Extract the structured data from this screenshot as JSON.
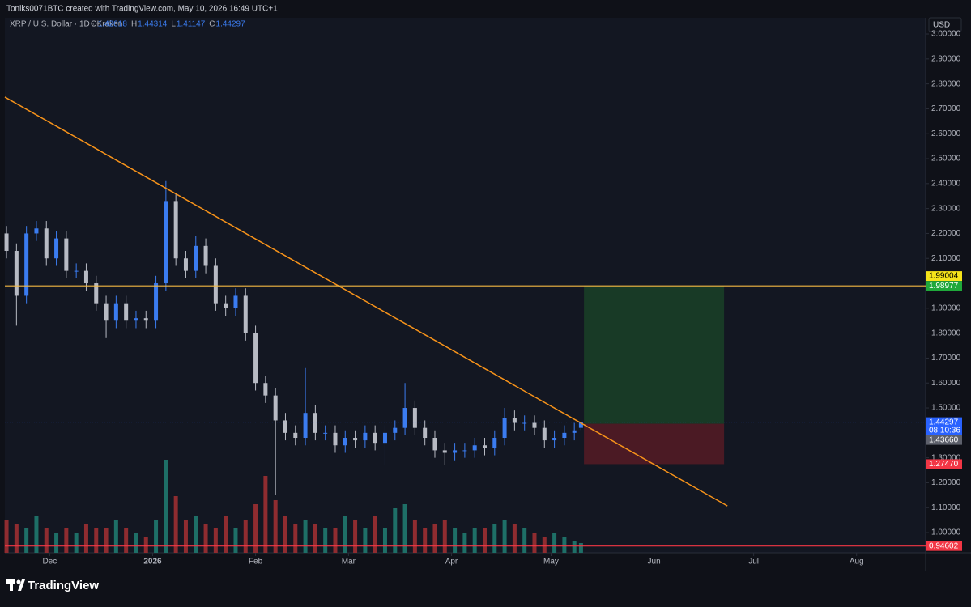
{
  "header": "Toniks0071BTC created with TradingView.com, May 10, 2026 16:49 UTC+1",
  "brand": "TradingView",
  "chart_data": {
    "type": "candlestick",
    "symbol": "XRP / U.S. Dollar · 1D · Kraken",
    "ohlc_keys": [
      "O",
      "H",
      "L",
      "C"
    ],
    "currency": "USD",
    "countdown": "08:10:36",
    "up_color": "#3b7cf0",
    "down_color": "#b7bac3",
    "volume_up_color": "#1e6f67",
    "volume_down_color": "#8f2c30",
    "candles": {
      "x": [
        0,
        3,
        6,
        9,
        12,
        15,
        18,
        21,
        24,
        27,
        30,
        33,
        36,
        39,
        42,
        45,
        48,
        51,
        54,
        57,
        60,
        63,
        66,
        69,
        72,
        75,
        78,
        81,
        84,
        87,
        90,
        93,
        96,
        99,
        102,
        105,
        108,
        111,
        114,
        117,
        120,
        123,
        126,
        129,
        132,
        135,
        138,
        141,
        144,
        147,
        150,
        153,
        156,
        159,
        162,
        165,
        168,
        171,
        173
      ],
      "open": [
        2.2,
        2.13,
        1.95,
        2.2,
        2.22,
        2.1,
        2.18,
        2.05,
        2.05,
        2.0,
        1.92,
        1.85,
        1.92,
        1.85,
        1.86,
        1.85,
        2.0,
        2.33,
        2.1,
        2.05,
        2.15,
        2.07,
        1.92,
        1.9,
        1.95,
        1.8,
        1.6,
        1.55,
        1.45,
        1.4,
        1.38,
        1.48,
        1.4,
        1.4,
        1.35,
        1.38,
        1.37,
        1.4,
        1.36,
        1.4,
        1.42,
        1.5,
        1.42,
        1.38,
        1.33,
        1.32,
        1.33,
        1.33,
        1.35,
        1.34,
        1.38,
        1.46,
        1.44,
        1.44,
        1.42,
        1.37,
        1.38,
        1.4,
        1.42018
      ],
      "high": [
        2.23,
        2.16,
        2.23,
        2.25,
        2.25,
        2.21,
        2.21,
        2.08,
        2.08,
        2.03,
        1.95,
        1.95,
        1.95,
        1.89,
        1.89,
        2.03,
        2.41,
        2.36,
        2.13,
        2.19,
        2.18,
        2.1,
        1.95,
        1.98,
        1.98,
        1.83,
        1.63,
        1.58,
        1.48,
        1.43,
        1.66,
        1.51,
        1.43,
        1.43,
        1.41,
        1.41,
        1.43,
        1.43,
        1.43,
        1.45,
        1.6,
        1.53,
        1.45,
        1.41,
        1.36,
        1.36,
        1.36,
        1.38,
        1.38,
        1.41,
        1.5,
        1.49,
        1.47,
        1.47,
        1.45,
        1.41,
        1.43,
        1.44,
        1.44314
      ],
      "low": [
        2.1,
        1.83,
        1.92,
        2.17,
        2.07,
        2.07,
        2.02,
        2.02,
        1.97,
        1.89,
        1.78,
        1.82,
        1.82,
        1.82,
        1.82,
        1.82,
        1.97,
        2.07,
        2.02,
        2.02,
        2.04,
        1.89,
        1.87,
        1.87,
        1.77,
        1.57,
        1.52,
        1.15,
        1.37,
        1.35,
        1.35,
        1.37,
        1.37,
        1.32,
        1.32,
        1.34,
        1.34,
        1.33,
        1.27,
        1.37,
        1.39,
        1.39,
        1.35,
        1.3,
        1.27,
        1.29,
        1.3,
        1.3,
        1.31,
        1.31,
        1.35,
        1.41,
        1.41,
        1.39,
        1.34,
        1.34,
        1.35,
        1.37,
        1.41147
      ],
      "close": [
        2.13,
        1.95,
        2.2,
        2.22,
        2.1,
        2.18,
        2.05,
        2.05,
        2.0,
        1.92,
        1.85,
        1.92,
        1.85,
        1.86,
        1.85,
        2.0,
        2.33,
        2.1,
        2.05,
        2.15,
        2.07,
        1.92,
        1.9,
        1.95,
        1.8,
        1.6,
        1.55,
        1.45,
        1.4,
        1.38,
        1.48,
        1.4,
        1.4,
        1.35,
        1.38,
        1.37,
        1.4,
        1.36,
        1.4,
        1.42,
        1.5,
        1.42,
        1.38,
        1.33,
        1.32,
        1.33,
        1.33,
        1.35,
        1.34,
        1.38,
        1.46,
        1.44,
        1.44,
        1.42,
        1.37,
        1.38,
        1.4,
        1.41,
        1.44297
      ],
      "volume": [
        40,
        35,
        30,
        45,
        30,
        25,
        30,
        25,
        35,
        30,
        30,
        40,
        30,
        25,
        20,
        40,
        115,
        70,
        40,
        45,
        35,
        30,
        45,
        30,
        40,
        60,
        95,
        65,
        45,
        35,
        40,
        35,
        30,
        30,
        45,
        40,
        30,
        45,
        30,
        55,
        60,
        40,
        30,
        35,
        40,
        30,
        25,
        30,
        30,
        35,
        40,
        35,
        30,
        25,
        20,
        25,
        20,
        15,
        12
      ]
    },
    "xlim": [
      -0.5,
      276.8
    ],
    "xticks": [
      {
        "value": 13,
        "label": "Dec"
      },
      {
        "value": 44,
        "label": "2026"
      },
      {
        "value": 75,
        "label": "Feb"
      },
      {
        "value": 103,
        "label": "Mar"
      },
      {
        "value": 134,
        "label": "Apr"
      },
      {
        "value": 164,
        "label": "May"
      },
      {
        "value": 195,
        "label": "Jun"
      },
      {
        "value": 225,
        "label": "Jul"
      },
      {
        "value": 256,
        "label": "Aug"
      }
    ],
    "ylim": [
      0.919,
      3.065
    ],
    "yticks": [
      {
        "value": 1.0,
        "label": "1.00000"
      },
      {
        "value": 1.1,
        "label": "1.10000"
      },
      {
        "value": 1.2,
        "label": "1.20000"
      },
      {
        "value": 1.3,
        "label": "1.30000"
      },
      {
        "value": 1.5,
        "label": "1.50000"
      },
      {
        "value": 1.6,
        "label": "1.60000"
      },
      {
        "value": 1.7,
        "label": "1.70000"
      },
      {
        "value": 1.8,
        "label": "1.80000"
      },
      {
        "value": 1.9,
        "label": "1.90000"
      },
      {
        "value": 2.1,
        "label": "2.10000"
      },
      {
        "value": 2.2,
        "label": "2.20000"
      },
      {
        "value": 2.3,
        "label": "2.30000"
      },
      {
        "value": 2.4,
        "label": "2.40000"
      },
      {
        "value": 2.5,
        "label": "2.50000"
      },
      {
        "value": 2.6,
        "label": "2.60000"
      },
      {
        "value": 2.7,
        "label": "2.70000"
      },
      {
        "value": 2.8,
        "label": "2.80000"
      },
      {
        "value": 2.9,
        "label": "2.90000"
      },
      {
        "value": 3.0,
        "label": "3.00000"
      }
    ],
    "trendline": {
      "x": [
        -0.5,
        217.1
      ],
      "y": [
        2.747,
        1.107
      ],
      "color": "#f7931a"
    },
    "hlines": [
      {
        "value": 1.98977,
        "color": "#f5b942",
        "label_color": "#1fa83a"
      },
      {
        "value": 0.94602,
        "color": "#f23645",
        "label_color": "#f23645"
      }
    ],
    "position": {
      "start": 173.9,
      "end": 216.1,
      "entry": {
        "value": 1.4366,
        "label": "1.43660"
      },
      "target": 1.99004,
      "stop": {
        "value": 1.2747,
        "label": "1.27470"
      },
      "profit_color": "#183a26",
      "loss_color": "#4b1a24",
      "target_label_color": "#f5e31a",
      "entry_label_color": "#5d606b",
      "stop_label_color": "#f23645",
      "last_color": "#2962ff"
    }
  }
}
